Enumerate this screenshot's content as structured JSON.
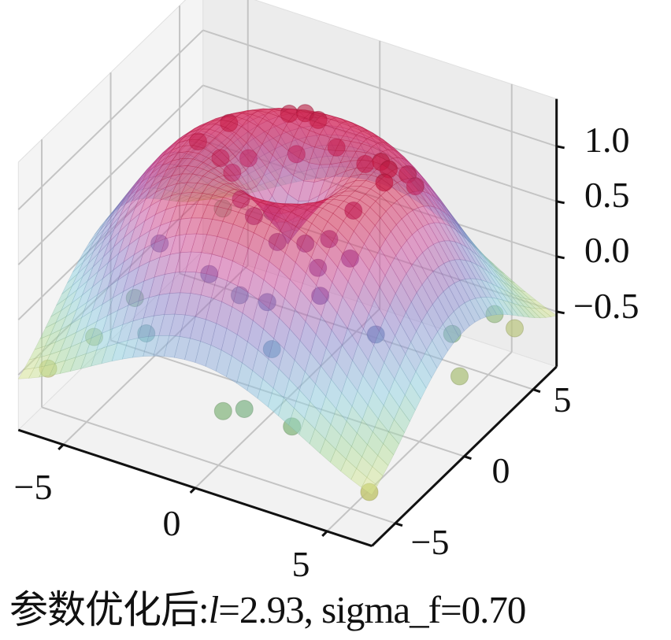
{
  "chart_data": {
    "type": "surface3d+scatter",
    "title": "",
    "caption": {
      "prefix": "参数优化后:",
      "param_symbol": "l",
      "rest": "=2.93, sigma_f=0.70"
    },
    "x_axis": {
      "range": [
        -6.7,
        6.7
      ],
      "ticks": [
        -5,
        0,
        5
      ],
      "tick_labels": [
        "−5",
        "0",
        "5"
      ]
    },
    "y_axis": {
      "range": [
        -6.7,
        6.7
      ],
      "ticks": [
        -5,
        0,
        5
      ],
      "tick_labels": [
        "−5",
        "0",
        "5"
      ]
    },
    "z_axis": {
      "range": [
        -1.0,
        1.43
      ],
      "ticks": [
        -0.5,
        0.0,
        0.5,
        1.0
      ],
      "tick_labels": [
        "−0.5",
        "0.0",
        "0.5",
        "1.0"
      ]
    },
    "grid": true,
    "colormap": [
      "#f4ee8c",
      "#a8dca0",
      "#8fd3e6",
      "#8c84d2",
      "#d04a9e",
      "#d81e4c"
    ],
    "surface_alpha": 0.5,
    "points": [
      {
        "x": -1.5,
        "y": 3.0,
        "z": 1.1
      },
      {
        "x": -1.0,
        "y": 3.2,
        "z": 1.12
      },
      {
        "x": -0.4,
        "y": 3.0,
        "z": 1.13
      },
      {
        "x": 2.5,
        "y": 2.0,
        "z": 1.1
      },
      {
        "x": 3.0,
        "y": 1.6,
        "z": 1.12
      },
      {
        "x": 3.2,
        "y": 0.9,
        "z": 1.1
      },
      {
        "x": -3.0,
        "y": 1.5,
        "z": 1.08
      },
      {
        "x": -2.8,
        "y": 0.5,
        "z": 0.9
      },
      {
        "x": -2.2,
        "y": 0.2,
        "z": 0.85
      },
      {
        "x": -1.5,
        "y": -0.5,
        "z": 0.75
      },
      {
        "x": -0.8,
        "y": -0.9,
        "z": 0.7
      },
      {
        "x": 0.3,
        "y": -1.3,
        "z": 0.6
      },
      {
        "x": 1.2,
        "y": -1.0,
        "z": 0.62
      },
      {
        "x": 2.0,
        "y": -0.8,
        "z": 0.7
      },
      {
        "x": 2.5,
        "y": 0.0,
        "z": 0.9
      },
      {
        "x": 3.3,
        "y": 2.4,
        "z": 1.0
      },
      {
        "x": 3.8,
        "y": 2.0,
        "z": 0.98
      },
      {
        "x": 0.5,
        "y": 2.6,
        "z": 1.0
      },
      {
        "x": -0.6,
        "y": 1.8,
        "z": 0.95
      },
      {
        "x": 1.8,
        "y": 2.2,
        "z": 1.0
      },
      {
        "x": -3.6,
        "y": 0.4,
        "z": 1.0
      },
      {
        "x": -2.0,
        "y": 1.0,
        "z": 0.9
      },
      {
        "x": -0.9,
        "y": 0.6,
        "z": 0.55
      },
      {
        "x": 2.2,
        "y": -2.0,
        "z": 0.6
      },
      {
        "x": 3.0,
        "y": -1.2,
        "z": 0.65
      },
      {
        "x": 2.6,
        "y": -2.6,
        "z": 0.45
      },
      {
        "x": -1.5,
        "y": -2.8,
        "z": 0.35
      },
      {
        "x": 0.8,
        "y": -3.0,
        "z": 0.3
      },
      {
        "x": -0.5,
        "y": -2.5,
        "z": 0.2
      },
      {
        "x": 1.5,
        "y": -4.0,
        "z": 0.05
      },
      {
        "x": -3.8,
        "y": -2.0,
        "z": 0.35
      },
      {
        "x": 4.5,
        "y": -2.2,
        "z": 0.2
      },
      {
        "x": -5.0,
        "y": -1.5,
        "z": -0.3
      },
      {
        "x": -5.5,
        "y": -3.5,
        "z": -0.45
      },
      {
        "x": -6.2,
        "y": -5.5,
        "z": -0.55
      },
      {
        "x": -3.0,
        "y": -4.5,
        "z": -0.1
      },
      {
        "x": 1.5,
        "y": -6.0,
        "z": -0.25
      },
      {
        "x": 0.8,
        "y": -6.2,
        "z": -0.3
      },
      {
        "x": 3.2,
        "y": -5.8,
        "z": -0.3
      },
      {
        "x": 6.5,
        "y": -6.5,
        "z": -0.55
      },
      {
        "x": 5.5,
        "y": 4.5,
        "z": -0.35
      },
      {
        "x": 6.0,
        "y": 5.0,
        "z": -0.5
      },
      {
        "x": 5.2,
        "y": 2.0,
        "z": -0.25
      },
      {
        "x": 6.0,
        "y": 1.0,
        "z": -0.45
      },
      {
        "x": -4.8,
        "y": 4.5,
        "z": -0.2
      }
    ]
  }
}
